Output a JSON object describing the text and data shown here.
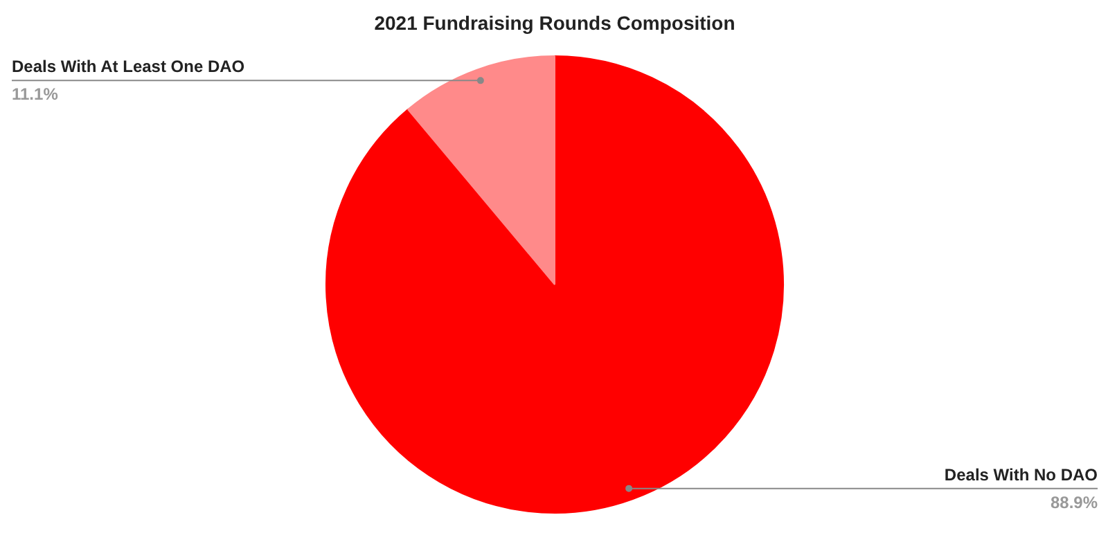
{
  "chart_data": {
    "type": "pie",
    "title": "2021 Fundraising Rounds Composition",
    "categories": [
      "Deals With No DAO",
      "Deals With At Least One DAO"
    ],
    "values": [
      88.9,
      11.1
    ],
    "colors": [
      "#ff0000",
      "#ff8a8a"
    ],
    "value_labels": [
      "88.9%",
      "11.1%"
    ]
  }
}
